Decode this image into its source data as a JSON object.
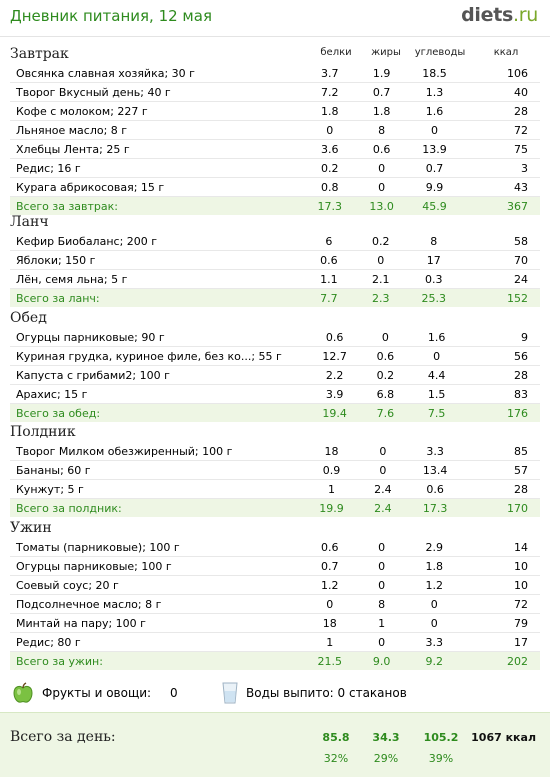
{
  "header": {
    "title": "Дневник питания, 12 мая",
    "logo_main": "diets",
    "logo_suffix": ".ru"
  },
  "columns": {
    "protein": "белки",
    "fat": "жиры",
    "carbs": "углеводы",
    "kcal": "ккал"
  },
  "meals": [
    {
      "title": "Завтрак",
      "items": [
        {
          "name": "Овсянка славная хозяйка; 30 г",
          "p": "3.7",
          "f": "1.9",
          "c": "18.5",
          "k": "106"
        },
        {
          "name": "Творог Вкусный день; 40 г",
          "p": "7.2",
          "f": "0.7",
          "c": "1.3",
          "k": "40"
        },
        {
          "name": "Кофе с молоком; 227 г",
          "p": "1.8",
          "f": "1.8",
          "c": "1.6",
          "k": "28"
        },
        {
          "name": "Льняное масло; 8 г",
          "p": "0",
          "f": "8",
          "c": "0",
          "k": "72"
        },
        {
          "name": "Хлебцы Лента; 25 г",
          "p": "3.6",
          "f": "0.6",
          "c": "13.9",
          "k": "75"
        },
        {
          "name": "Редис; 16 г",
          "p": "0.2",
          "f": "0",
          "c": "0.7",
          "k": "3"
        },
        {
          "name": "Курага абрикосовая; 15 г",
          "p": "0.8",
          "f": "0",
          "c": "9.9",
          "k": "43"
        }
      ],
      "total": {
        "name": "Всего за завтрак:",
        "p": "17.3",
        "f": "13.0",
        "c": "45.9",
        "k": "367"
      }
    },
    {
      "title": "Ланч",
      "items": [
        {
          "name": "Кефир Биобаланс; 200 г",
          "p": "6",
          "f": "0.2",
          "c": "8",
          "k": "58"
        },
        {
          "name": "Яблоки; 150 г",
          "p": "0.6",
          "f": "0",
          "c": "17",
          "k": "70"
        },
        {
          "name": "Лён, семя льна; 5 г",
          "p": "1.1",
          "f": "2.1",
          "c": "0.3",
          "k": "24"
        }
      ],
      "total": {
        "name": "Всего за ланч:",
        "p": "7.7",
        "f": "2.3",
        "c": "25.3",
        "k": "152"
      }
    },
    {
      "title": "Обед",
      "items": [
        {
          "name": "Огурцы парниковые; 90 г",
          "p": "0.6",
          "f": "0",
          "c": "1.6",
          "k": "9"
        },
        {
          "name": "Куриная грудка, куриное филе, без ко...; 55 г",
          "p": "12.7",
          "f": "0.6",
          "c": "0",
          "k": "56"
        },
        {
          "name": "Капуста с грибами2; 100 г",
          "p": "2.2",
          "f": "0.2",
          "c": "4.4",
          "k": "28"
        },
        {
          "name": "Арахис; 15 г",
          "p": "3.9",
          "f": "6.8",
          "c": "1.5",
          "k": "83"
        }
      ],
      "total": {
        "name": "Всего за обед:",
        "p": "19.4",
        "f": "7.6",
        "c": "7.5",
        "k": "176"
      }
    },
    {
      "title": "Полдник",
      "items": [
        {
          "name": "Творог Милком обезжиренный; 100 г",
          "p": "18",
          "f": "0",
          "c": "3.3",
          "k": "85"
        },
        {
          "name": "Бананы; 60 г",
          "p": "0.9",
          "f": "0",
          "c": "13.4",
          "k": "57"
        },
        {
          "name": "Кунжут; 5 г",
          "p": "1",
          "f": "2.4",
          "c": "0.6",
          "k": "28"
        }
      ],
      "total": {
        "name": "Всего за полдник:",
        "p": "19.9",
        "f": "2.4",
        "c": "17.3",
        "k": "170"
      }
    },
    {
      "title": "Ужин",
      "items": [
        {
          "name": "Томаты (парниковые); 100 г",
          "p": "0.6",
          "f": "0",
          "c": "2.9",
          "k": "14"
        },
        {
          "name": "Огурцы парниковые; 100 г",
          "p": "0.7",
          "f": "0",
          "c": "1.8",
          "k": "10"
        },
        {
          "name": "Соевый соус; 20 г",
          "p": "1.2",
          "f": "0",
          "c": "1.2",
          "k": "10"
        },
        {
          "name": "Подсолнечное масло; 8 г",
          "p": "0",
          "f": "8",
          "c": "0",
          "k": "72"
        },
        {
          "name": "Минтай на пару; 100 г",
          "p": "18",
          "f": "1",
          "c": "0",
          "k": "79"
        },
        {
          "name": "Редис; 80 г",
          "p": "1",
          "f": "0",
          "c": "3.3",
          "k": "17"
        }
      ],
      "total": {
        "name": "Всего за ужин:",
        "p": "21.5",
        "f": "9.0",
        "c": "9.2",
        "k": "202"
      }
    }
  ],
  "extras": {
    "fruit_label": "Фрукты и овощи:",
    "fruit_value": "0",
    "water_label": "Воды выпито: 0 стаканов",
    "fruit_icon": "apple-icon",
    "water_icon": "glass-icon"
  },
  "day": {
    "label": "Всего за день:",
    "p": "85.8",
    "f": "34.3",
    "c": "105.2",
    "k": "1067 ккал",
    "p_pct": "32%",
    "f_pct": "29%",
    "c_pct": "39%"
  }
}
